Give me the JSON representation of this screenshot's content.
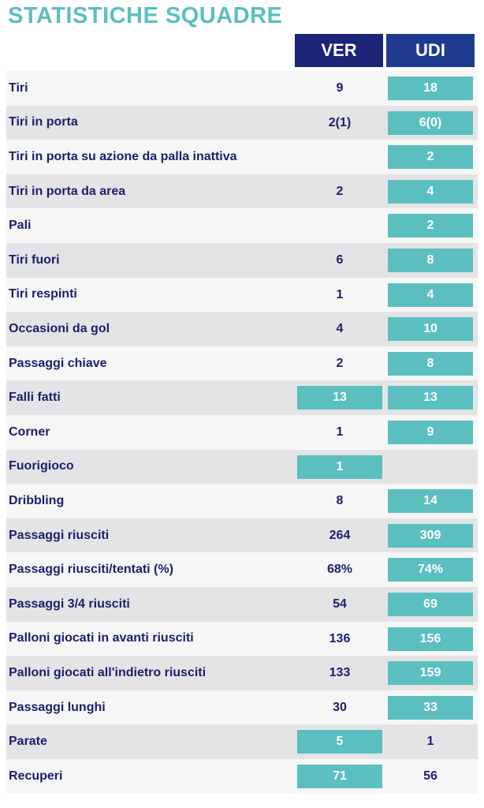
{
  "header": {
    "title": "STATISTICHE SQUADRE"
  },
  "table": {
    "columns": [
      "VER",
      "UDI"
    ],
    "rows": [
      {
        "label": "Tiri",
        "values": [
          "9",
          "18"
        ],
        "highlight": [
          false,
          true
        ]
      },
      {
        "label": "Tiri in porta",
        "values": [
          "2(1)",
          "6(0)"
        ],
        "highlight": [
          false,
          true
        ]
      },
      {
        "label": "Tiri in porta su azione da palla inattiva",
        "values": [
          null,
          "2"
        ],
        "highlight": [
          false,
          true
        ]
      },
      {
        "label": "Tiri in porta da area",
        "values": [
          "2",
          "4"
        ],
        "highlight": [
          false,
          true
        ]
      },
      {
        "label": "Pali",
        "values": [
          null,
          "2"
        ],
        "highlight": [
          false,
          true
        ]
      },
      {
        "label": "Tiri fuori",
        "values": [
          "6",
          "8"
        ],
        "highlight": [
          false,
          true
        ]
      },
      {
        "label": "Tiri respinti",
        "values": [
          "1",
          "4"
        ],
        "highlight": [
          false,
          true
        ]
      },
      {
        "label": "Occasioni da gol",
        "values": [
          "4",
          "10"
        ],
        "highlight": [
          false,
          true
        ]
      },
      {
        "label": "Passaggi chiave",
        "values": [
          "2",
          "8"
        ],
        "highlight": [
          false,
          true
        ]
      },
      {
        "label": "Falli fatti",
        "values": [
          "13",
          "13"
        ],
        "highlight": [
          true,
          true
        ]
      },
      {
        "label": "Corner",
        "values": [
          "1",
          "9"
        ],
        "highlight": [
          false,
          true
        ]
      },
      {
        "label": "Fuorigioco",
        "values": [
          "1",
          null
        ],
        "highlight": [
          true,
          false
        ]
      },
      {
        "label": "Dribbling",
        "values": [
          "8",
          "14"
        ],
        "highlight": [
          false,
          true
        ]
      },
      {
        "label": "Passaggi riusciti",
        "values": [
          "264",
          "309"
        ],
        "highlight": [
          false,
          true
        ]
      },
      {
        "label": "Passaggi riusciti/tentati (%)",
        "values": [
          "68%",
          "74%"
        ],
        "highlight": [
          false,
          true
        ]
      },
      {
        "label": "Passaggi 3/4 riusciti",
        "values": [
          "54",
          "69"
        ],
        "highlight": [
          false,
          true
        ]
      },
      {
        "label": "Palloni giocati in avanti riusciti",
        "values": [
          "136",
          "156"
        ],
        "highlight": [
          false,
          true
        ]
      },
      {
        "label": "Palloni giocati all'indietro riusciti",
        "values": [
          "133",
          "159"
        ],
        "highlight": [
          false,
          true
        ]
      },
      {
        "label": "Passaggi lunghi",
        "values": [
          "30",
          "33"
        ],
        "highlight": [
          false,
          true
        ]
      },
      {
        "label": "Parate",
        "values": [
          "5",
          "1"
        ],
        "highlight": [
          true,
          false
        ]
      },
      {
        "label": "Recuperi",
        "values": [
          "71",
          "56"
        ],
        "highlight": [
          true,
          false
        ]
      }
    ]
  }
}
